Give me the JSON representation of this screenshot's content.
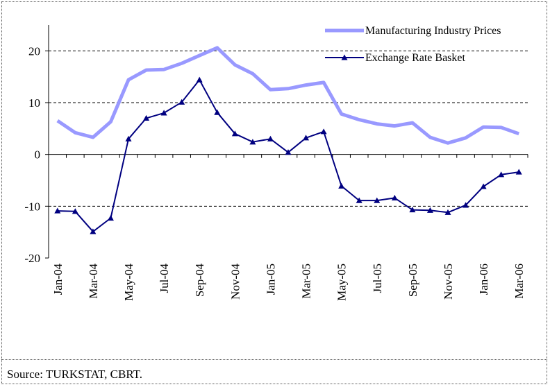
{
  "source_note": "Source: TURKSTAT, CBRT.",
  "chart_data": {
    "type": "line",
    "title": "",
    "xlabel": "",
    "ylabel": "",
    "ylim": [
      -20,
      25
    ],
    "y_ticks": [
      -20,
      -10,
      0,
      10,
      20
    ],
    "grid": "dashed horizontal at 20, 10, -10",
    "legend_position": "top-right",
    "x": [
      "Jan-04",
      "Feb-04",
      "Mar-04",
      "Apr-04",
      "May-04",
      "Jun-04",
      "Jul-04",
      "Aug-04",
      "Sep-04",
      "Oct-04",
      "Nov-04",
      "Dec-04",
      "Jan-05",
      "Feb-05",
      "Mar-05",
      "Apr-05",
      "May-05",
      "Jun-05",
      "Jul-05",
      "Aug-05",
      "Sep-05",
      "Oct-05",
      "Nov-05",
      "Dec-05",
      "Jan-06",
      "Feb-06",
      "Mar-06"
    ],
    "x_tick_labels": [
      "Jan-04",
      "Mar-04",
      "May-04",
      "Jul-04",
      "Sep-04",
      "Nov-04",
      "Jan-05",
      "Mar-05",
      "May-05",
      "Jul-05",
      "Sep-05",
      "Nov-05",
      "Jan-06",
      "Mar-06"
    ],
    "series": [
      {
        "name": "Manufacturing Industry Prices",
        "color": "#9999ff",
        "marker": "none",
        "values": [
          6.5,
          4.2,
          3.3,
          6.3,
          14.4,
          16.3,
          16.4,
          17.6,
          19.1,
          20.6,
          17.3,
          15.6,
          12.5,
          12.7,
          13.4,
          13.9,
          7.8,
          6.7,
          5.9,
          5.5,
          6.1,
          3.3,
          2.2,
          3.2,
          5.3,
          5.2,
          4.0
        ]
      },
      {
        "name": "Exchange Rate Basket",
        "color": "#000080",
        "marker": "triangle",
        "values": [
          -10.9,
          -11.0,
          -14.9,
          -12.3,
          3.0,
          7.0,
          8.0,
          10.1,
          14.4,
          8.1,
          4.0,
          2.4,
          3.0,
          0.4,
          3.2,
          4.4,
          -6.1,
          -8.9,
          -8.9,
          -8.4,
          -10.7,
          -10.8,
          -11.2,
          -9.8,
          -6.2,
          -3.9,
          -3.4
        ]
      }
    ]
  }
}
